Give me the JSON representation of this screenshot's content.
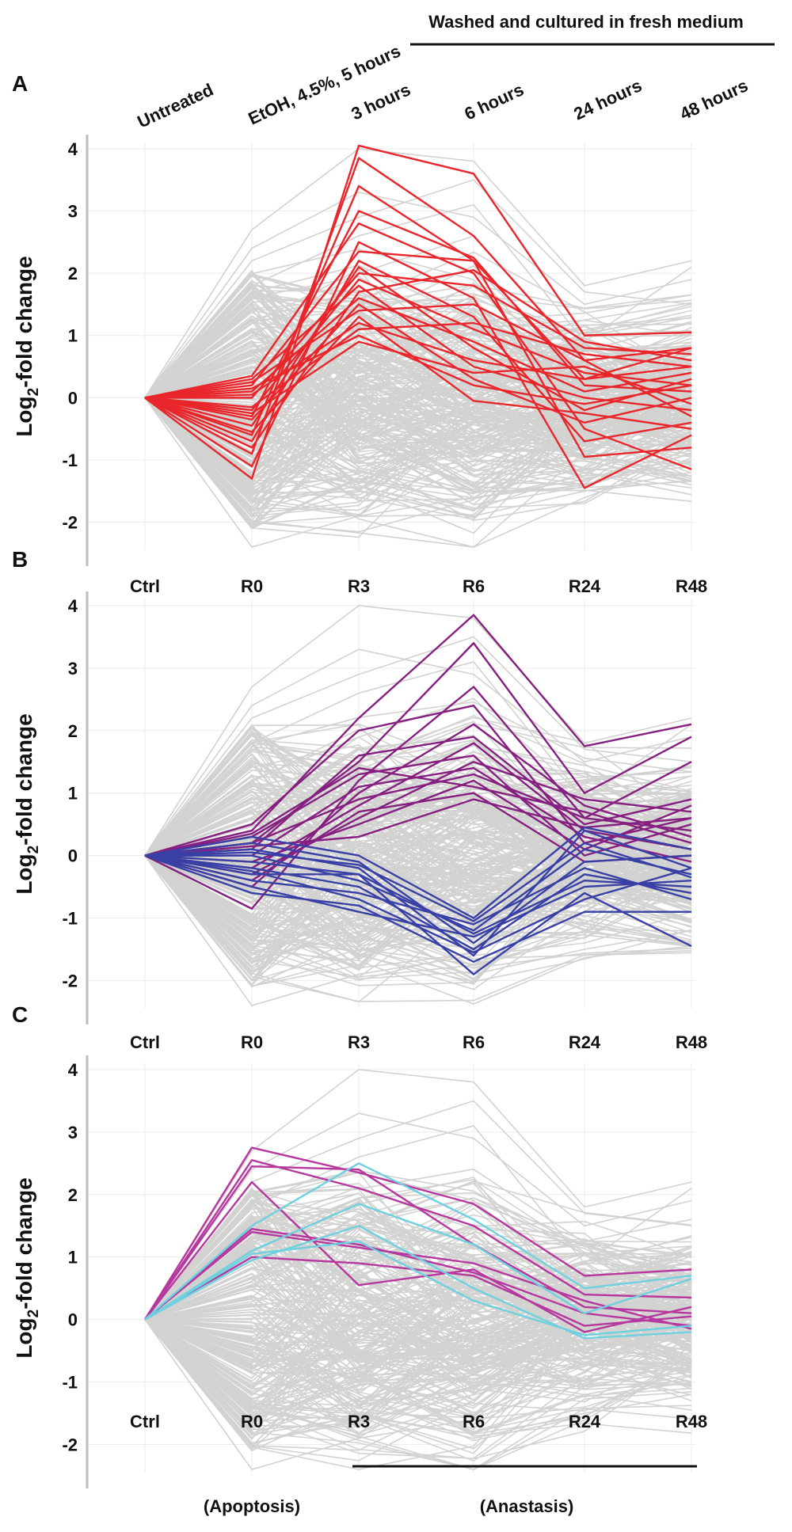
{
  "header": {
    "washed_label": "Washed and cultured in fresh medium",
    "conditions": [
      "Untreated",
      "EtOH, 4.5%, 5 hours",
      "3 hours",
      "6 hours",
      "24 hours",
      "48 hours"
    ]
  },
  "footer": {
    "apoptosis": "(Apoptosis)",
    "anastasis": "(Anastasis)"
  },
  "colors": {
    "background_lines": "#d2d2d0",
    "red": "#e8262b",
    "purple": "#851f80",
    "blue": "#3840a6",
    "magenta": "#b6389e",
    "cyan": "#6fd0e0"
  },
  "chart_data": [
    {
      "type": "line",
      "panel_label": "A",
      "ylabel_main": "Log",
      "ylabel_sub": "2",
      "ylabel_rest": "-fold change",
      "categories": [
        "Ctrl",
        "R0",
        "R3",
        "R6",
        "R24",
        "R48"
      ],
      "ylim": [
        -2.45,
        4.1
      ],
      "yticks": [
        4,
        3,
        2,
        1,
        0,
        -1,
        -2
      ],
      "highlight_color": "red",
      "highlight_series": [
        {
          "name": "red-1",
          "values": [
            0,
            -1.3,
            4.05,
            3.6,
            1.0,
            1.05
          ]
        },
        {
          "name": "red-2",
          "values": [
            0,
            -0.9,
            3.85,
            2.6,
            0.6,
            0.8
          ]
        },
        {
          "name": "red-3",
          "values": [
            0,
            -0.6,
            3.4,
            2.2,
            0.3,
            0.5
          ]
        },
        {
          "name": "red-4",
          "values": [
            0,
            -0.3,
            3.0,
            2.25,
            0.2,
            0.1
          ]
        },
        {
          "name": "red-5",
          "values": [
            0,
            0.35,
            2.8,
            2.0,
            -0.5,
            -1.15
          ]
        },
        {
          "name": "red-6",
          "values": [
            0,
            -1.1,
            2.5,
            1.6,
            -1.45,
            -0.6
          ]
        },
        {
          "name": "red-7",
          "values": [
            0,
            0.2,
            2.35,
            2.2,
            -0.95,
            -0.8
          ]
        },
        {
          "name": "red-8",
          "values": [
            0,
            -0.7,
            2.2,
            1.3,
            -0.7,
            -0.4
          ]
        },
        {
          "name": "red-9",
          "values": [
            0,
            -0.45,
            2.1,
            0.8,
            -0.2,
            0.3
          ]
        },
        {
          "name": "red-10",
          "values": [
            0,
            0.0,
            2.0,
            1.8,
            0.8,
            0.7
          ]
        },
        {
          "name": "red-11",
          "values": [
            0,
            -0.2,
            1.9,
            1.1,
            0.4,
            0.2
          ]
        },
        {
          "name": "red-12",
          "values": [
            0,
            0.3,
            1.8,
            0.5,
            0.0,
            -0.2
          ]
        },
        {
          "name": "red-13",
          "values": [
            0,
            -0.8,
            1.7,
            2.05,
            0.9,
            0.6
          ]
        },
        {
          "name": "red-14",
          "values": [
            0,
            0.1,
            1.6,
            0.9,
            0.1,
            0.4
          ]
        },
        {
          "name": "red-15",
          "values": [
            0,
            -0.35,
            1.5,
            0.3,
            -0.4,
            0.0
          ]
        },
        {
          "name": "red-16",
          "values": [
            0,
            0.25,
            1.4,
            1.5,
            0.6,
            -0.3
          ]
        },
        {
          "name": "red-17",
          "values": [
            0,
            -0.55,
            1.3,
            -0.05,
            -0.25,
            -0.5
          ]
        },
        {
          "name": "red-18",
          "values": [
            0,
            0.05,
            1.2,
            0.6,
            0.3,
            0.8
          ]
        },
        {
          "name": "red-19",
          "values": [
            0,
            -0.15,
            1.1,
            1.2,
            0.7,
            0.5
          ]
        },
        {
          "name": "red-20",
          "values": [
            0,
            0.15,
            1.0,
            0.2,
            -0.1,
            0.2
          ]
        },
        {
          "name": "red-21",
          "values": [
            0,
            -0.25,
            0.9,
            0.4,
            0.5,
            -0.1
          ]
        }
      ]
    },
    {
      "type": "line",
      "panel_label": "B",
      "ylabel_main": "Log",
      "ylabel_sub": "2",
      "ylabel_rest": "-fold change",
      "categories": [
        "Ctrl",
        "R0",
        "R3",
        "R6",
        "R24",
        "R48"
      ],
      "ylim": [
        -2.45,
        4.1
      ],
      "yticks": [
        4,
        3,
        2,
        1,
        0,
        -1,
        -2
      ],
      "highlight_series": [
        {
          "name": "purple-1",
          "color": "purple",
          "values": [
            0,
            0.4,
            2.2,
            3.85,
            1.75,
            2.1
          ]
        },
        {
          "name": "purple-2",
          "color": "purple",
          "values": [
            0,
            0.2,
            1.5,
            3.4,
            1.0,
            1.9
          ]
        },
        {
          "name": "purple-3",
          "color": "purple",
          "values": [
            0,
            -0.85,
            1.2,
            2.7,
            0.6,
            1.5
          ]
        },
        {
          "name": "purple-4",
          "color": "purple",
          "values": [
            0,
            0.5,
            2.0,
            2.4,
            0.2,
            0.6
          ]
        },
        {
          "name": "purple-5",
          "color": "purple",
          "values": [
            0,
            -0.5,
            1.0,
            2.1,
            0.8,
            0.3
          ]
        },
        {
          "name": "purple-6",
          "color": "purple",
          "values": [
            0,
            0.1,
            1.6,
            1.9,
            0.5,
            0.9
          ]
        },
        {
          "name": "purple-7",
          "color": "purple",
          "values": [
            0,
            -0.2,
            0.8,
            1.8,
            0.4,
            0.1
          ]
        },
        {
          "name": "purple-8",
          "color": "purple",
          "values": [
            0,
            0.3,
            1.3,
            1.6,
            0.0,
            0.5
          ]
        },
        {
          "name": "purple-9",
          "color": "purple",
          "values": [
            0,
            -0.3,
            0.6,
            1.5,
            0.9,
            0.7
          ]
        },
        {
          "name": "purple-10",
          "color": "purple",
          "values": [
            0,
            0.0,
            1.1,
            1.4,
            0.3,
            -0.1
          ]
        },
        {
          "name": "purple-11",
          "color": "purple",
          "values": [
            0,
            0.2,
            0.9,
            1.3,
            0.6,
            0.4
          ]
        },
        {
          "name": "purple-12",
          "color": "purple",
          "values": [
            0,
            -0.1,
            0.5,
            1.2,
            0.1,
            0.8
          ]
        },
        {
          "name": "purple-13",
          "color": "purple",
          "values": [
            0,
            0.35,
            1.4,
            1.1,
            0.7,
            0.2
          ]
        },
        {
          "name": "purple-14",
          "color": "purple",
          "values": [
            0,
            -0.4,
            0.7,
            1.0,
            -0.1,
            0.0
          ]
        },
        {
          "name": "purple-15",
          "color": "purple",
          "values": [
            0,
            0.15,
            0.3,
            0.9,
            0.45,
            0.6
          ]
        },
        {
          "name": "blue-1",
          "color": "blue",
          "values": [
            0,
            -0.3,
            -0.3,
            -1.9,
            -0.6,
            -1.45
          ]
        },
        {
          "name": "blue-2",
          "color": "blue",
          "values": [
            0,
            -0.6,
            -0.8,
            -1.7,
            -0.9,
            -0.9
          ]
        },
        {
          "name": "blue-3",
          "color": "blue",
          "values": [
            0,
            0.1,
            -0.2,
            -1.6,
            0.4,
            -0.2
          ]
        },
        {
          "name": "blue-4",
          "color": "blue",
          "values": [
            0,
            -0.2,
            -0.5,
            -1.5,
            -0.3,
            -0.6
          ]
        },
        {
          "name": "blue-5",
          "color": "blue",
          "values": [
            0,
            0.2,
            -0.1,
            -1.4,
            -0.1,
            0.0
          ]
        },
        {
          "name": "blue-6",
          "color": "blue",
          "values": [
            0,
            -0.5,
            -0.9,
            -1.3,
            -0.5,
            -0.4
          ]
        },
        {
          "name": "blue-7",
          "color": "blue",
          "values": [
            0,
            0.0,
            -0.4,
            -1.2,
            0.1,
            -0.3
          ]
        },
        {
          "name": "blue-8",
          "color": "blue",
          "values": [
            0,
            -0.4,
            -0.6,
            -1.1,
            -0.2,
            -0.7
          ]
        },
        {
          "name": "blue-9",
          "color": "blue",
          "values": [
            0,
            0.3,
            0.0,
            -1.0,
            0.45,
            0.1
          ]
        },
        {
          "name": "blue-10",
          "color": "blue",
          "values": [
            0,
            -0.1,
            -0.3,
            -1.25,
            -0.4,
            -0.5
          ]
        },
        {
          "name": "blue-11",
          "color": "blue",
          "values": [
            0,
            -0.25,
            -0.7,
            -1.55,
            -0.7,
            -0.2
          ]
        },
        {
          "name": "blue-12",
          "color": "blue",
          "values": [
            0,
            0.05,
            -0.15,
            -1.05,
            0.2,
            -0.35
          ]
        }
      ]
    },
    {
      "type": "line",
      "panel_label": "C",
      "ylabel_main": "Log",
      "ylabel_sub": "2",
      "ylabel_rest": "-fold change",
      "categories": [
        "Ctrl",
        "R0",
        "R3",
        "R6",
        "R24",
        "R48"
      ],
      "ylim": [
        -2.45,
        4.1
      ],
      "yticks": [
        4,
        3,
        2,
        1,
        0,
        -1,
        -2
      ],
      "highlight_series": [
        {
          "name": "magenta-1",
          "color": "magenta",
          "values": [
            0,
            2.75,
            2.35,
            1.85,
            0.7,
            0.8
          ]
        },
        {
          "name": "magenta-2",
          "color": "magenta",
          "values": [
            0,
            2.55,
            2.1,
            1.5,
            0.4,
            0.35
          ]
        },
        {
          "name": "magenta-3",
          "color": "magenta",
          "values": [
            0,
            2.45,
            2.4,
            1.2,
            0.2,
            0.1
          ]
        },
        {
          "name": "magenta-4",
          "color": "magenta",
          "values": [
            0,
            2.2,
            0.55,
            0.8,
            -0.2,
            0.2
          ]
        },
        {
          "name": "magenta-5",
          "color": "magenta",
          "values": [
            0,
            1.45,
            1.2,
            0.75,
            0.1,
            -0.1
          ]
        },
        {
          "name": "magenta-6",
          "color": "magenta",
          "values": [
            0,
            1.4,
            1.15,
            0.9,
            0.3,
            -0.15
          ]
        },
        {
          "name": "magenta-7",
          "color": "magenta",
          "values": [
            0,
            1.0,
            0.9,
            0.7,
            -0.1,
            0.05
          ]
        },
        {
          "name": "cyan-1",
          "color": "cyan",
          "values": [
            0,
            1.5,
            2.5,
            1.6,
            0.5,
            0.7
          ]
        },
        {
          "name": "cyan-2",
          "color": "cyan",
          "values": [
            0,
            1.1,
            1.85,
            1.2,
            0.1,
            0.65
          ]
        },
        {
          "name": "cyan-3",
          "color": "cyan",
          "values": [
            0,
            0.95,
            1.5,
            0.5,
            -0.3,
            -0.2
          ]
        },
        {
          "name": "cyan-4",
          "color": "cyan",
          "values": [
            0,
            1.05,
            1.25,
            0.3,
            -0.25,
            -0.1
          ]
        }
      ]
    }
  ]
}
